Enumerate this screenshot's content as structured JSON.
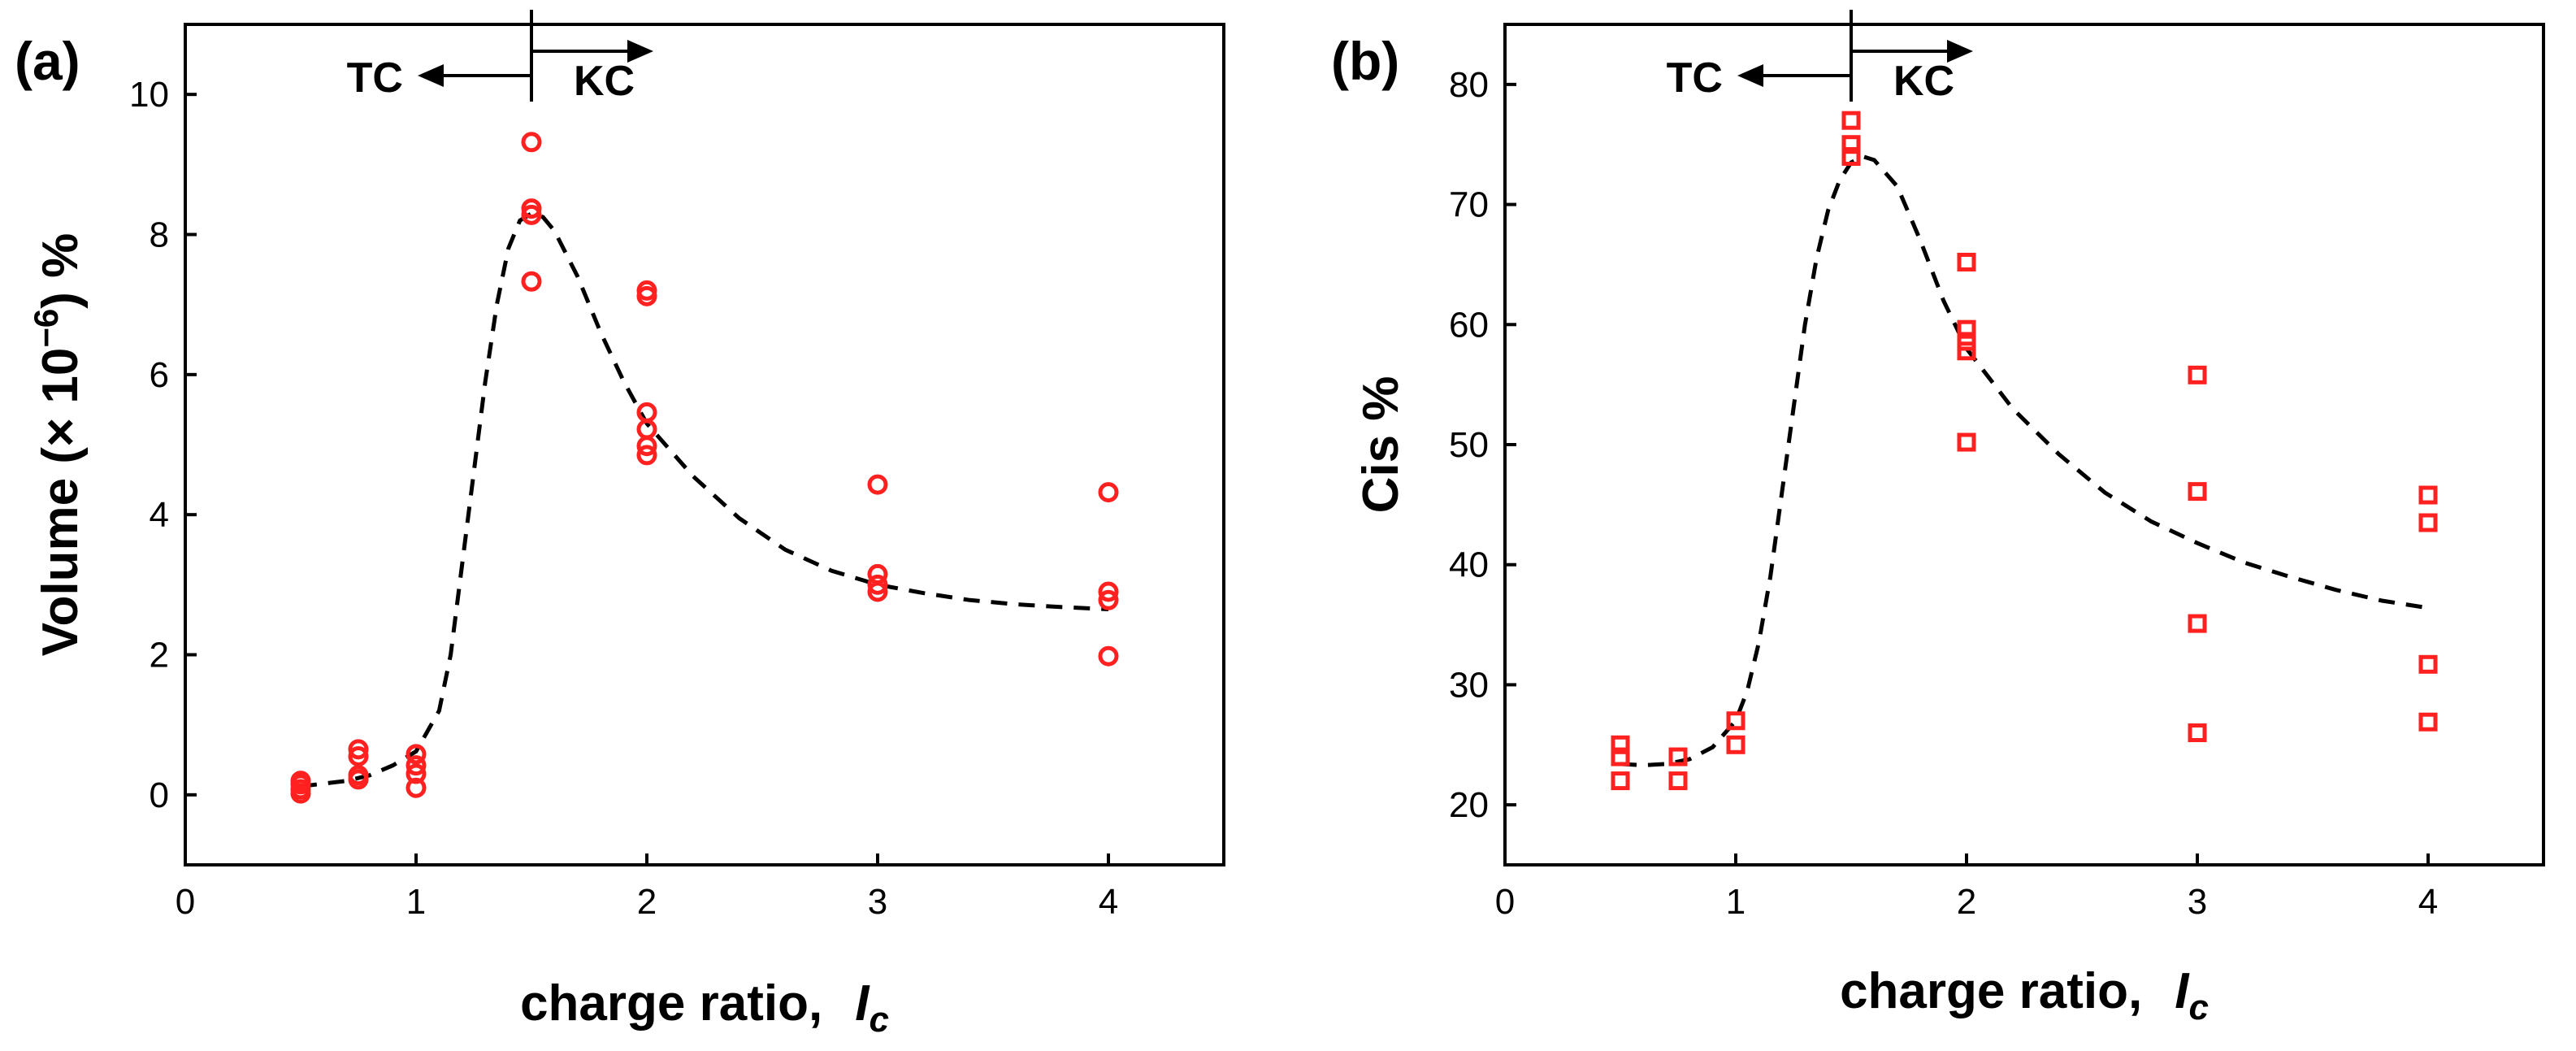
{
  "chart_data": [
    {
      "panel_label": "(a)",
      "type": "scatter",
      "marker": "circle",
      "marker_color": "#ff2020",
      "xlabel": "charge ratio,",
      "xlabel_symbol": "I",
      "xlabel_subscript": "c",
      "ylabel_prefix": "Volume (× 10",
      "ylabel_sup": "−6",
      "ylabel_suffix": ") %",
      "xlim": [
        0,
        4.5
      ],
      "ylim": [
        -1,
        11
      ],
      "xticks": [
        0,
        1,
        2,
        3,
        4
      ],
      "yticks": [
        0,
        2,
        4,
        6,
        8,
        10
      ],
      "annotation": {
        "x": 1.5,
        "left_label": "TC",
        "right_label": "KC"
      },
      "points": [
        [
          0.5,
          0.02
        ],
        [
          0.5,
          0.08
        ],
        [
          0.5,
          0.15
        ],
        [
          0.5,
          0.2
        ],
        [
          0.75,
          0.22
        ],
        [
          0.75,
          0.28
        ],
        [
          0.75,
          0.55
        ],
        [
          0.75,
          0.65
        ],
        [
          1.0,
          0.1
        ],
        [
          1.0,
          0.3
        ],
        [
          1.0,
          0.42
        ],
        [
          1.0,
          0.58
        ],
        [
          1.5,
          7.33
        ],
        [
          1.5,
          8.28
        ],
        [
          1.5,
          8.37
        ],
        [
          1.5,
          9.32
        ],
        [
          2.0,
          4.85
        ],
        [
          2.0,
          4.98
        ],
        [
          2.0,
          5.22
        ],
        [
          2.0,
          5.46
        ],
        [
          2.0,
          7.12
        ],
        [
          2.0,
          7.2
        ],
        [
          3.0,
          2.9
        ],
        [
          3.0,
          3.0
        ],
        [
          3.0,
          3.15
        ],
        [
          3.0,
          4.43
        ],
        [
          4.0,
          1.98
        ],
        [
          4.0,
          2.78
        ],
        [
          4.0,
          2.9
        ],
        [
          4.0,
          4.32
        ]
      ],
      "fit_line": [
        [
          0.5,
          0.12
        ],
        [
          0.6,
          0.16
        ],
        [
          0.7,
          0.2
        ],
        [
          0.8,
          0.28
        ],
        [
          0.9,
          0.42
        ],
        [
          1.0,
          0.62
        ],
        [
          1.1,
          1.2
        ],
        [
          1.15,
          2.0
        ],
        [
          1.2,
          3.3
        ],
        [
          1.25,
          4.6
        ],
        [
          1.3,
          5.9
        ],
        [
          1.35,
          7.0
        ],
        [
          1.4,
          7.8
        ],
        [
          1.45,
          8.2
        ],
        [
          1.5,
          8.3
        ],
        [
          1.55,
          8.25
        ],
        [
          1.6,
          8.05
        ],
        [
          1.7,
          7.4
        ],
        [
          1.8,
          6.6
        ],
        [
          1.9,
          5.9
        ],
        [
          2.0,
          5.3
        ],
        [
          2.2,
          4.55
        ],
        [
          2.4,
          3.95
        ],
        [
          2.6,
          3.5
        ],
        [
          2.8,
          3.2
        ],
        [
          3.0,
          3.0
        ],
        [
          3.2,
          2.88
        ],
        [
          3.4,
          2.78
        ],
        [
          3.6,
          2.72
        ],
        [
          3.8,
          2.68
        ],
        [
          4.0,
          2.65
        ]
      ]
    },
    {
      "panel_label": "(b)",
      "type": "scatter",
      "marker": "square",
      "marker_color": "#ff2020",
      "xlabel": "charge ratio,",
      "xlabel_symbol": "I",
      "xlabel_subscript": "c",
      "ylabel": "Cis %",
      "xlim": [
        0,
        4.5
      ],
      "ylim": [
        15,
        85
      ],
      "xticks": [
        0,
        1,
        2,
        3,
        4
      ],
      "yticks": [
        20,
        30,
        40,
        50,
        60,
        70,
        80
      ],
      "annotation": {
        "x": 1.5,
        "left_label": "TC",
        "right_label": "KC"
      },
      "points": [
        [
          0.5,
          22.0
        ],
        [
          0.5,
          24.0
        ],
        [
          0.5,
          25.0
        ],
        [
          0.75,
          22.0
        ],
        [
          0.75,
          24.0
        ],
        [
          1.0,
          25.0
        ],
        [
          1.0,
          27.0
        ],
        [
          1.5,
          74.0
        ],
        [
          1.5,
          75.0
        ],
        [
          1.5,
          77.0
        ],
        [
          2.0,
          50.2
        ],
        [
          2.0,
          57.8
        ],
        [
          2.0,
          58.6
        ],
        [
          2.0,
          59.6
        ],
        [
          2.0,
          65.2
        ],
        [
          3.0,
          26.0
        ],
        [
          3.0,
          35.1
        ],
        [
          3.0,
          46.1
        ],
        [
          3.0,
          55.8
        ],
        [
          4.0,
          26.9
        ],
        [
          4.0,
          31.7
        ],
        [
          4.0,
          43.5
        ],
        [
          4.0,
          45.8
        ]
      ],
      "fit_line": [
        [
          0.5,
          23.4
        ],
        [
          0.6,
          23.3
        ],
        [
          0.7,
          23.4
        ],
        [
          0.8,
          23.8
        ],
        [
          0.9,
          24.8
        ],
        [
          1.0,
          27.0
        ],
        [
          1.05,
          29.5
        ],
        [
          1.1,
          33.5
        ],
        [
          1.15,
          39.0
        ],
        [
          1.2,
          46.0
        ],
        [
          1.25,
          53.0
        ],
        [
          1.3,
          60.0
        ],
        [
          1.35,
          65.5
        ],
        [
          1.4,
          69.5
        ],
        [
          1.45,
          72.0
        ],
        [
          1.5,
          73.5
        ],
        [
          1.55,
          74.0
        ],
        [
          1.6,
          73.7
        ],
        [
          1.7,
          71.5
        ],
        [
          1.8,
          67.0
        ],
        [
          1.9,
          62.0
        ],
        [
          2.0,
          58.0
        ],
        [
          2.2,
          53.0
        ],
        [
          2.4,
          49.2
        ],
        [
          2.6,
          46.0
        ],
        [
          2.8,
          43.6
        ],
        [
          3.0,
          41.8
        ],
        [
          3.2,
          40.2
        ],
        [
          3.4,
          39.0
        ],
        [
          3.6,
          37.9
        ],
        [
          3.8,
          37.0
        ],
        [
          4.0,
          36.4
        ]
      ]
    }
  ]
}
